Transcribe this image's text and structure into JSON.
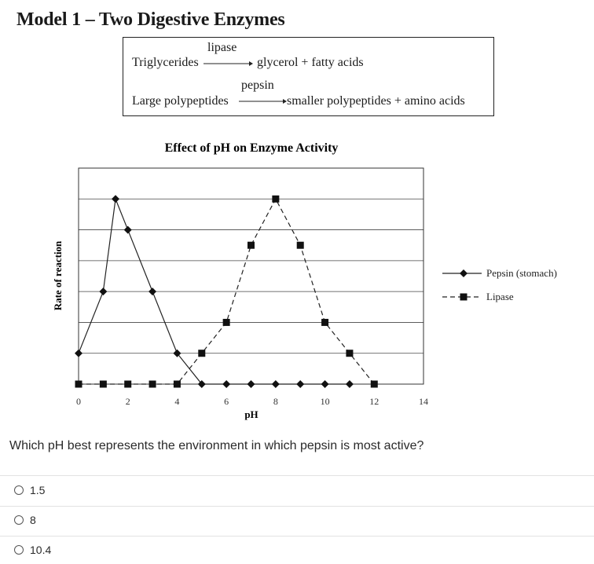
{
  "title": "Model 1 – Two Digestive Enzymes",
  "reactions": [
    {
      "enzyme": "lipase",
      "substrate": "Triglycerides",
      "products": "glycerol + fatty acids"
    },
    {
      "enzyme": "pepsin",
      "substrate": "Large polypeptides",
      "products": "smaller polypeptides + amino acids"
    }
  ],
  "chart_data": {
    "type": "line",
    "title": "Effect of pH on Enzyme Activity",
    "xlabel": "pH",
    "ylabel": "Rate of reaction",
    "xlim": [
      0,
      14
    ],
    "ylim": [
      0,
      7
    ],
    "xticks": [
      0,
      2,
      4,
      6,
      8,
      10,
      12,
      14
    ],
    "yticks_labeled": false,
    "grid": "horizontal",
    "legend_position": "right",
    "series": [
      {
        "name": "Pepsin (stomach)",
        "line": "solid",
        "marker": "diamond",
        "x": [
          0,
          1,
          1.5,
          2,
          3,
          4,
          5,
          6,
          7,
          8,
          9,
          10,
          11
        ],
        "y": [
          1,
          3,
          6,
          5,
          3,
          1,
          0,
          0,
          0,
          0,
          0,
          0,
          0
        ]
      },
      {
        "name": "Lipase",
        "line": "dashed",
        "marker": "square",
        "x": [
          0,
          1,
          2,
          3,
          4,
          5,
          6,
          7,
          8,
          9,
          10,
          11,
          12
        ],
        "y": [
          0,
          0,
          0,
          0,
          0,
          1,
          2,
          4.5,
          6,
          4.5,
          2,
          1,
          0
        ]
      }
    ]
  },
  "question": {
    "text": "Which pH best represents the environment in which pepsin is most active?",
    "options": [
      "1.5",
      "8",
      "10.4"
    ]
  }
}
